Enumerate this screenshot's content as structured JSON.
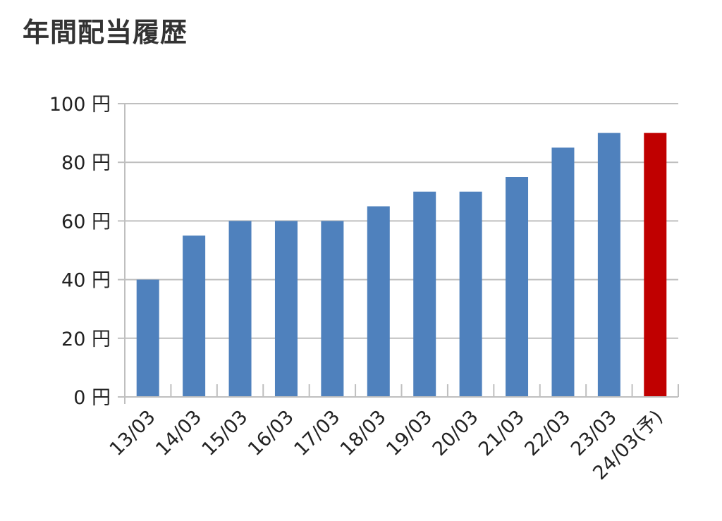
{
  "chart_data": {
    "type": "bar",
    "title": "年間配当履歴",
    "categories": [
      "13/03",
      "14/03",
      "15/03",
      "16/03",
      "17/03",
      "18/03",
      "19/03",
      "20/03",
      "21/03",
      "22/03",
      "23/03",
      "24/03(予)"
    ],
    "values": [
      40,
      55,
      60,
      60,
      60,
      65,
      70,
      70,
      75,
      85,
      90,
      90
    ],
    "bar_colors": [
      "#4f81bd",
      "#4f81bd",
      "#4f81bd",
      "#4f81bd",
      "#4f81bd",
      "#4f81bd",
      "#4f81bd",
      "#4f81bd",
      "#4f81bd",
      "#4f81bd",
      "#4f81bd",
      "#c00000"
    ],
    "y_ticks": [
      "0 円",
      "20 円",
      "40 円",
      "60 円",
      "80 円",
      "100 円"
    ],
    "y_tick_values": [
      0,
      20,
      40,
      60,
      80,
      100
    ],
    "ylim": [
      0,
      100
    ],
    "xlabel": "",
    "ylabel": "",
    "grid": true,
    "legend": "none"
  }
}
